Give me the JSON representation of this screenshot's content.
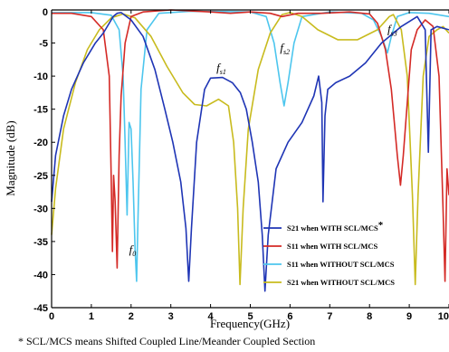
{
  "chart_data": {
    "type": "line",
    "xlabel": "Frequency(GHz)",
    "ylabel": "Magnitude (dB)",
    "xlim": [
      0,
      10
    ],
    "ylim": [
      -45,
      0
    ],
    "xticks": [
      "0",
      "1",
      "2",
      "3",
      "4",
      "5",
      "6",
      "7",
      "8",
      "9",
      "10"
    ],
    "yticks": [
      "0",
      "-5",
      "-10",
      "-15",
      "-20",
      "-25",
      "-30",
      "-35",
      "-40",
      "-45"
    ],
    "grid": false,
    "legend_position": "bottom-right",
    "series": [
      {
        "name": "S21 when WITH SCL/MCS",
        "legend_suffix": "*",
        "color": "#1f35b5",
        "points": [
          [
            0,
            -29
          ],
          [
            0.1,
            -22
          ],
          [
            0.3,
            -16
          ],
          [
            0.5,
            -12
          ],
          [
            0.8,
            -8
          ],
          [
            1.1,
            -5
          ],
          [
            1.3,
            -3.5
          ],
          [
            1.45,
            -2
          ],
          [
            1.55,
            -1
          ],
          [
            1.65,
            -0.5
          ],
          [
            1.75,
            -0.4
          ],
          [
            2.0,
            -1.5
          ],
          [
            2.3,
            -4
          ],
          [
            2.6,
            -9
          ],
          [
            2.85,
            -15
          ],
          [
            3.05,
            -20
          ],
          [
            3.25,
            -26
          ],
          [
            3.38,
            -33
          ],
          [
            3.45,
            -41
          ],
          [
            3.52,
            -33
          ],
          [
            3.65,
            -20
          ],
          [
            3.85,
            -12
          ],
          [
            4.0,
            -10.3
          ],
          [
            4.3,
            -10.2
          ],
          [
            4.55,
            -11
          ],
          [
            4.75,
            -12.5
          ],
          [
            4.9,
            -15
          ],
          [
            5.05,
            -20
          ],
          [
            5.2,
            -26
          ],
          [
            5.3,
            -34
          ],
          [
            5.37,
            -42.5
          ],
          [
            5.45,
            -34
          ],
          [
            5.65,
            -24
          ],
          [
            5.95,
            -20
          ],
          [
            6.3,
            -17
          ],
          [
            6.6,
            -13
          ],
          [
            6.72,
            -10
          ],
          [
            6.8,
            -14
          ],
          [
            6.83,
            -29
          ],
          [
            6.88,
            -16
          ],
          [
            6.95,
            -12
          ],
          [
            7.15,
            -11
          ],
          [
            7.5,
            -10
          ],
          [
            7.9,
            -8
          ],
          [
            8.3,
            -5
          ],
          [
            8.8,
            -2.5
          ],
          [
            9.2,
            -1
          ],
          [
            9.4,
            -3
          ],
          [
            9.48,
            -21.5
          ],
          [
            9.55,
            -3
          ],
          [
            9.7,
            -2.5
          ],
          [
            10,
            -3
          ]
        ]
      },
      {
        "name": "S11 when WITH SCL/MCS",
        "color": "#d42a26",
        "points": [
          [
            0,
            -0.5
          ],
          [
            0.5,
            -0.5
          ],
          [
            1.0,
            -1
          ],
          [
            1.3,
            -3
          ],
          [
            1.45,
            -10
          ],
          [
            1.5,
            -25
          ],
          [
            1.53,
            -36.5
          ],
          [
            1.56,
            -25
          ],
          [
            1.6,
            -29
          ],
          [
            1.65,
            -39
          ],
          [
            1.7,
            -22
          ],
          [
            1.75,
            -13
          ],
          [
            1.85,
            -5
          ],
          [
            2.0,
            -1
          ],
          [
            2.3,
            -0.3
          ],
          [
            3.0,
            0
          ],
          [
            4.0,
            -0.3
          ],
          [
            4.5,
            -0.5
          ],
          [
            5.0,
            -0.3
          ],
          [
            5.5,
            -0.5
          ],
          [
            5.8,
            -1
          ],
          [
            6.2,
            -0.5
          ],
          [
            6.8,
            -0.5
          ],
          [
            7.5,
            -0.3
          ],
          [
            8.0,
            -0.6
          ],
          [
            8.2,
            -2
          ],
          [
            8.4,
            -6
          ],
          [
            8.55,
            -12
          ],
          [
            8.7,
            -22
          ],
          [
            8.78,
            -26.5
          ],
          [
            8.85,
            -22
          ],
          [
            8.95,
            -14
          ],
          [
            9.05,
            -6
          ],
          [
            9.2,
            -3
          ],
          [
            9.4,
            -1.5
          ],
          [
            9.6,
            -2.5
          ],
          [
            9.75,
            -10
          ],
          [
            9.85,
            -30
          ],
          [
            9.9,
            -41
          ],
          [
            9.95,
            -24
          ],
          [
            10,
            -28
          ]
        ]
      },
      {
        "name": "S11 when WITHOUT SCL/MCS",
        "color": "#4dc6ee",
        "points": [
          [
            0,
            -0.4
          ],
          [
            1.0,
            -0.4
          ],
          [
            1.5,
            -0.8
          ],
          [
            1.7,
            -3
          ],
          [
            1.8,
            -10
          ],
          [
            1.85,
            -20
          ],
          [
            1.9,
            -31
          ],
          [
            1.95,
            -17
          ],
          [
            2.0,
            -18
          ],
          [
            2.05,
            -26
          ],
          [
            2.1,
            -36
          ],
          [
            2.14,
            -41
          ],
          [
            2.18,
            -30
          ],
          [
            2.25,
            -12
          ],
          [
            2.4,
            -3
          ],
          [
            2.7,
            -0.5
          ],
          [
            3.5,
            -0.2
          ],
          [
            5.0,
            -0.3
          ],
          [
            5.4,
            -1
          ],
          [
            5.6,
            -5
          ],
          [
            5.75,
            -11
          ],
          [
            5.85,
            -14.5
          ],
          [
            5.95,
            -11
          ],
          [
            6.1,
            -5
          ],
          [
            6.3,
            -1
          ],
          [
            7.0,
            -0.3
          ],
          [
            7.8,
            -0.5
          ],
          [
            8.1,
            -1.5
          ],
          [
            8.3,
            -4
          ],
          [
            8.45,
            -6.5
          ],
          [
            8.55,
            -4
          ],
          [
            8.7,
            -1
          ],
          [
            9.0,
            -0.4
          ],
          [
            9.5,
            -0.5
          ],
          [
            10,
            -1
          ]
        ]
      },
      {
        "name": "S21 when WITHOUT SCL/MCS",
        "color": "#c8bb1e",
        "points": [
          [
            0,
            -34
          ],
          [
            0.1,
            -27
          ],
          [
            0.3,
            -18
          ],
          [
            0.6,
            -11
          ],
          [
            0.9,
            -6
          ],
          [
            1.2,
            -3
          ],
          [
            1.5,
            -1.2
          ],
          [
            1.8,
            -0.6
          ],
          [
            2.1,
            -1.2
          ],
          [
            2.5,
            -4
          ],
          [
            2.9,
            -8.5
          ],
          [
            3.3,
            -12.5
          ],
          [
            3.6,
            -14.3
          ],
          [
            3.9,
            -14.5
          ],
          [
            4.2,
            -13.5
          ],
          [
            4.45,
            -14.5
          ],
          [
            4.58,
            -20
          ],
          [
            4.68,
            -30
          ],
          [
            4.74,
            -41.5
          ],
          [
            4.82,
            -30
          ],
          [
            4.95,
            -18
          ],
          [
            5.2,
            -9
          ],
          [
            5.5,
            -3.5
          ],
          [
            5.8,
            -0.7
          ],
          [
            6.0,
            -0.4
          ],
          [
            6.3,
            -1
          ],
          [
            6.7,
            -3
          ],
          [
            7.2,
            -4.5
          ],
          [
            7.7,
            -4.5
          ],
          [
            8.2,
            -3
          ],
          [
            8.5,
            -1
          ],
          [
            8.6,
            -0.7
          ],
          [
            8.8,
            -3
          ],
          [
            8.95,
            -10
          ],
          [
            9.08,
            -28
          ],
          [
            9.15,
            -41.5
          ],
          [
            9.22,
            -28
          ],
          [
            9.35,
            -10
          ],
          [
            9.5,
            -4
          ],
          [
            9.7,
            -3
          ],
          [
            9.85,
            -2.5
          ],
          [
            10,
            -3.5
          ]
        ]
      }
    ],
    "annotations": [
      {
        "main": "f",
        "sub": "0",
        "x": 1.95,
        "y": -36.8
      },
      {
        "main": "f",
        "sub": "s1",
        "x": 4.15,
        "y": -9.3
      },
      {
        "main": "f",
        "sub": "s2",
        "x": 5.75,
        "y": -6.3
      },
      {
        "main": "f",
        "sub": "s3",
        "x": 8.45,
        "y": -3.5
      }
    ],
    "footnote": "* SCL/MCS means Shifted Coupled Line/Meander Coupled Section"
  }
}
